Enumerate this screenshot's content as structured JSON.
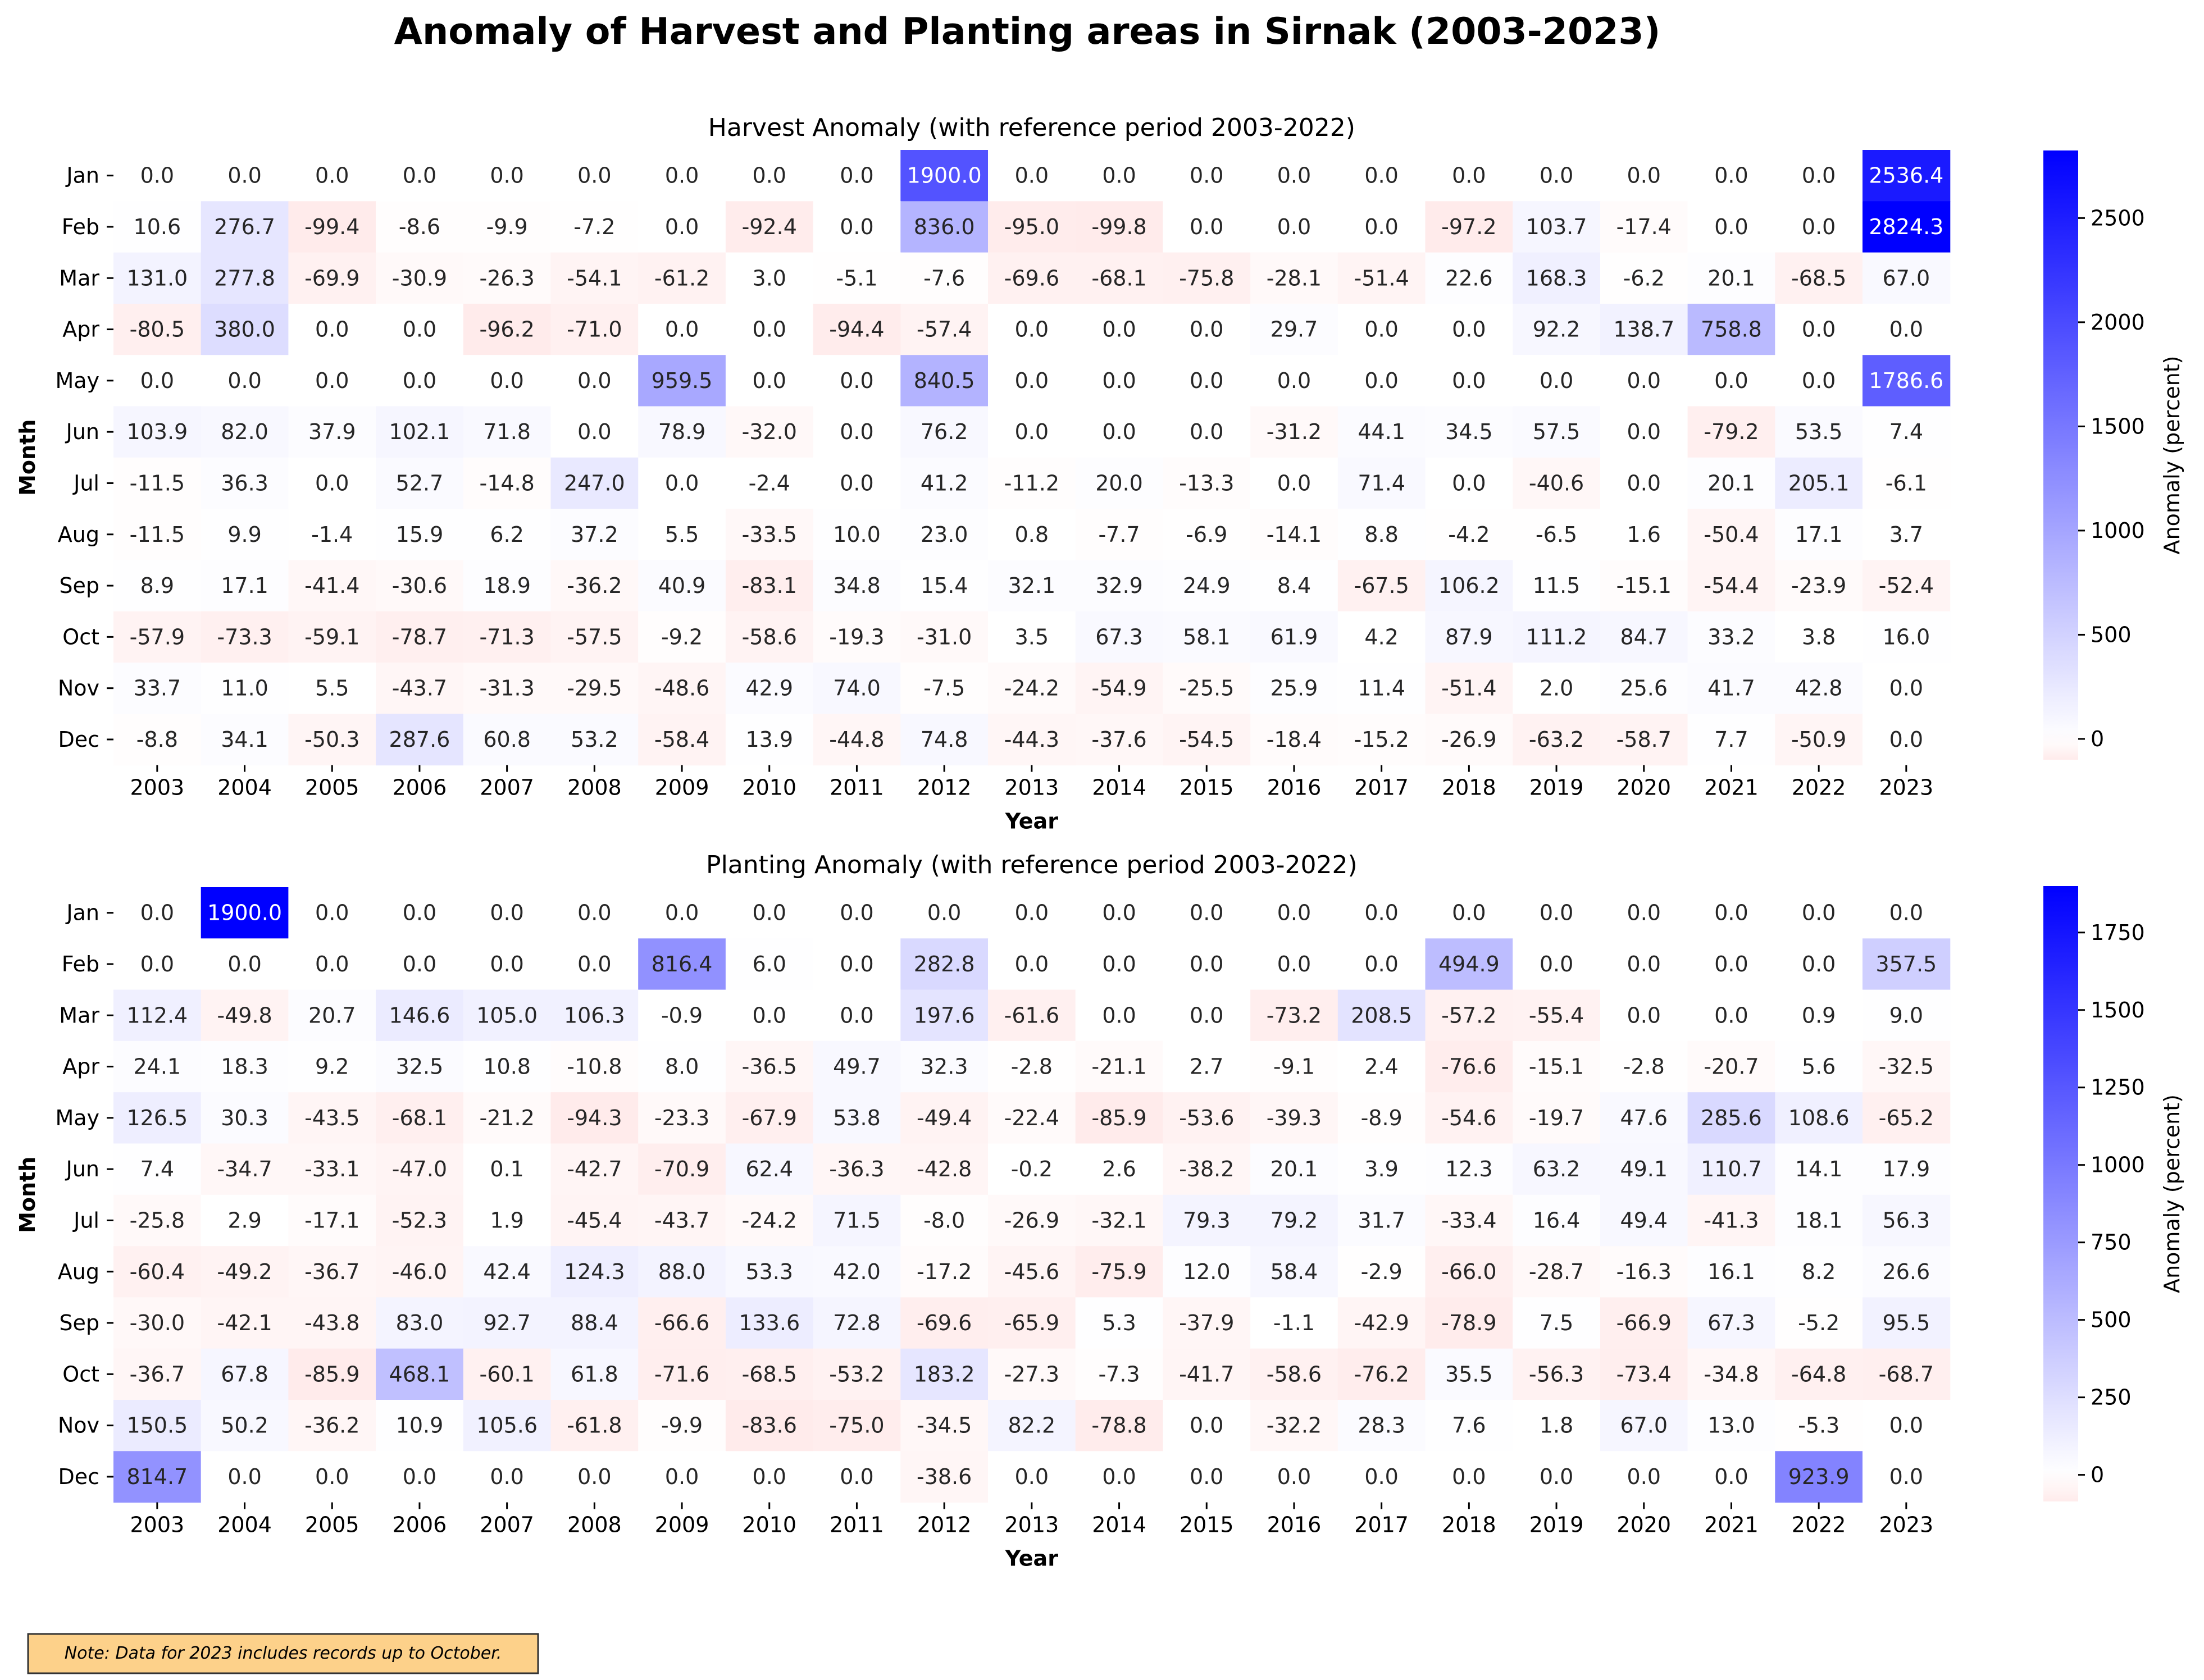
{
  "suptitle": "Anomaly of Harvest and Planting areas in Sirnak (2003-2023)",
  "note": "Note: Data for 2023 includes records up to October.",
  "chart_data": [
    {
      "type": "heatmap",
      "title": "Harvest Anomaly (with reference period 2003-2022)",
      "xlabel": "Year",
      "ylabel": "Month",
      "colorbar_label": "Anomaly (percent)",
      "colorbar_ticks": [
        0,
        500,
        1000,
        1500,
        2000,
        2500
      ],
      "vmin": -99.8,
      "vmax": 2824.3,
      "x": [
        "2003",
        "2004",
        "2005",
        "2006",
        "2007",
        "2008",
        "2009",
        "2010",
        "2011",
        "2012",
        "2013",
        "2014",
        "2015",
        "2016",
        "2017",
        "2018",
        "2019",
        "2020",
        "2021",
        "2022",
        "2023"
      ],
      "y": [
        "Jan",
        "Feb",
        "Mar",
        "Apr",
        "May",
        "Jun",
        "Jul",
        "Aug",
        "Sep",
        "Oct",
        "Nov",
        "Dec"
      ],
      "values": [
        [
          0.0,
          0.0,
          0.0,
          0.0,
          0.0,
          0.0,
          0.0,
          0.0,
          0.0,
          1900.0,
          0.0,
          0.0,
          0.0,
          0.0,
          0.0,
          0.0,
          0.0,
          0.0,
          0.0,
          0.0,
          2536.4
        ],
        [
          10.6,
          276.7,
          -99.4,
          -8.6,
          -9.9,
          -7.2,
          0.0,
          -92.4,
          0.0,
          836.0,
          -95.0,
          -99.8,
          0.0,
          0.0,
          0.0,
          -97.2,
          103.7,
          -17.4,
          0.0,
          0.0,
          2824.3
        ],
        [
          131.0,
          277.8,
          -69.9,
          -30.9,
          -26.3,
          -54.1,
          -61.2,
          3.0,
          -5.1,
          -7.6,
          -69.6,
          -68.1,
          -75.8,
          -28.1,
          -51.4,
          22.6,
          168.3,
          -6.2,
          20.1,
          -68.5,
          67.0
        ],
        [
          -80.5,
          380.0,
          0.0,
          0.0,
          -96.2,
          -71.0,
          0.0,
          0.0,
          -94.4,
          -57.4,
          0.0,
          0.0,
          0.0,
          29.7,
          0.0,
          0.0,
          92.2,
          138.7,
          758.8,
          0.0,
          0.0
        ],
        [
          0.0,
          0.0,
          0.0,
          0.0,
          0.0,
          0.0,
          959.5,
          0.0,
          0.0,
          840.5,
          0.0,
          0.0,
          0.0,
          0.0,
          0.0,
          0.0,
          0.0,
          0.0,
          0.0,
          0.0,
          1786.6
        ],
        [
          103.9,
          82.0,
          37.9,
          102.1,
          71.8,
          0.0,
          78.9,
          -32.0,
          0.0,
          76.2,
          0.0,
          0.0,
          0.0,
          -31.2,
          44.1,
          34.5,
          57.5,
          0.0,
          -79.2,
          53.5,
          7.4
        ],
        [
          -11.5,
          36.3,
          0.0,
          52.7,
          -14.8,
          247.0,
          0.0,
          -2.4,
          0.0,
          41.2,
          -11.2,
          20.0,
          -13.3,
          0.0,
          71.4,
          0.0,
          -40.6,
          0.0,
          20.1,
          205.1,
          -6.1
        ],
        [
          -11.5,
          9.9,
          -1.4,
          15.9,
          6.2,
          37.2,
          5.5,
          -33.5,
          10.0,
          23.0,
          0.8,
          -7.7,
          -6.9,
          -14.1,
          8.8,
          -4.2,
          -6.5,
          1.6,
          -50.4,
          17.1,
          3.7
        ],
        [
          8.9,
          17.1,
          -41.4,
          -30.6,
          18.9,
          -36.2,
          40.9,
          -83.1,
          34.8,
          15.4,
          32.1,
          32.9,
          24.9,
          8.4,
          -67.5,
          106.2,
          11.5,
          -15.1,
          -54.4,
          -23.9,
          -52.4
        ],
        [
          -57.9,
          -73.3,
          -59.1,
          -78.7,
          -71.3,
          -57.5,
          -9.2,
          -58.6,
          -19.3,
          -31.0,
          3.5,
          67.3,
          58.1,
          61.9,
          4.2,
          87.9,
          111.2,
          84.7,
          33.2,
          3.8,
          16.0
        ],
        [
          33.7,
          11.0,
          5.5,
          -43.7,
          -31.3,
          -29.5,
          -48.6,
          42.9,
          74.0,
          -7.5,
          -24.2,
          -54.9,
          -25.5,
          25.9,
          11.4,
          -51.4,
          2.0,
          25.6,
          41.7,
          42.8,
          0.0
        ],
        [
          -8.8,
          34.1,
          -50.3,
          287.6,
          60.8,
          53.2,
          -58.4,
          13.9,
          -44.8,
          74.8,
          -44.3,
          -37.6,
          -54.5,
          -18.4,
          -15.2,
          -26.9,
          -63.2,
          -58.7,
          7.7,
          -50.9,
          0.0
        ]
      ]
    },
    {
      "type": "heatmap",
      "title": "Planting Anomaly (with reference period 2003-2022)",
      "xlabel": "Year",
      "ylabel": "Month",
      "colorbar_label": "Anomaly (percent)",
      "colorbar_ticks": [
        0,
        250,
        500,
        750,
        1000,
        1250,
        1500,
        1750
      ],
      "vmin": -85.9,
      "vmax": 1900.0,
      "x": [
        "2003",
        "2004",
        "2005",
        "2006",
        "2007",
        "2008",
        "2009",
        "2010",
        "2011",
        "2012",
        "2013",
        "2014",
        "2015",
        "2016",
        "2017",
        "2018",
        "2019",
        "2020",
        "2021",
        "2022",
        "2023"
      ],
      "y": [
        "Jan",
        "Feb",
        "Mar",
        "Apr",
        "May",
        "Jun",
        "Jul",
        "Aug",
        "Sep",
        "Oct",
        "Nov",
        "Dec"
      ],
      "values": [
        [
          0.0,
          1900.0,
          0.0,
          0.0,
          0.0,
          0.0,
          0.0,
          0.0,
          0.0,
          0.0,
          0.0,
          0.0,
          0.0,
          0.0,
          0.0,
          0.0,
          0.0,
          0.0,
          0.0,
          0.0,
          0.0
        ],
        [
          0.0,
          0.0,
          0.0,
          0.0,
          0.0,
          0.0,
          816.4,
          6.0,
          0.0,
          282.8,
          0.0,
          0.0,
          0.0,
          0.0,
          0.0,
          494.9,
          0.0,
          0.0,
          0.0,
          0.0,
          357.5
        ],
        [
          112.4,
          -49.8,
          20.7,
          146.6,
          105.0,
          106.3,
          -0.9,
          0.0,
          0.0,
          197.6,
          -61.6,
          0.0,
          0.0,
          -73.2,
          208.5,
          -57.2,
          -55.4,
          0.0,
          0.0,
          0.9,
          9.0
        ],
        [
          24.1,
          18.3,
          9.2,
          32.5,
          10.8,
          -10.8,
          8.0,
          -36.5,
          49.7,
          32.3,
          -2.8,
          -21.1,
          2.7,
          -9.1,
          2.4,
          -76.6,
          -15.1,
          -2.8,
          -20.7,
          5.6,
          -32.5
        ],
        [
          126.5,
          30.3,
          -43.5,
          -68.1,
          -21.2,
          -94.3,
          -23.3,
          -67.9,
          53.8,
          -49.4,
          -22.4,
          -85.9,
          -53.6,
          -39.3,
          -8.9,
          -54.6,
          -19.7,
          47.6,
          285.6,
          108.6,
          -65.2
        ],
        [
          7.4,
          -34.7,
          -33.1,
          -47.0,
          0.1,
          -42.7,
          -70.9,
          62.4,
          -36.3,
          -42.8,
          -0.2,
          2.6,
          -38.2,
          20.1,
          3.9,
          12.3,
          63.2,
          49.1,
          110.7,
          14.1,
          17.9
        ],
        [
          -25.8,
          2.9,
          -17.1,
          -52.3,
          1.9,
          -45.4,
          -43.7,
          -24.2,
          71.5,
          -8.0,
          -26.9,
          -32.1,
          79.3,
          79.2,
          31.7,
          -33.4,
          16.4,
          49.4,
          -41.3,
          18.1,
          56.3
        ],
        [
          -60.4,
          -49.2,
          -36.7,
          -46.0,
          42.4,
          124.3,
          88.0,
          53.3,
          42.0,
          -17.2,
          -45.6,
          -75.9,
          12.0,
          58.4,
          -2.9,
          -66.0,
          -28.7,
          -16.3,
          16.1,
          8.2,
          26.6
        ],
        [
          -30.0,
          -42.1,
          -43.8,
          83.0,
          92.7,
          88.4,
          -66.6,
          133.6,
          72.8,
          -69.6,
          -65.9,
          5.3,
          -37.9,
          -1.1,
          -42.9,
          -78.9,
          7.5,
          -66.9,
          67.3,
          -5.2,
          95.5
        ],
        [
          -36.7,
          67.8,
          -85.9,
          468.1,
          -60.1,
          61.8,
          -71.6,
          -68.5,
          -53.2,
          183.2,
          -27.3,
          -7.3,
          -41.7,
          -58.6,
          -76.2,
          35.5,
          -56.3,
          -73.4,
          -34.8,
          -64.8,
          -68.7
        ],
        [
          150.5,
          50.2,
          -36.2,
          10.9,
          105.6,
          -61.8,
          -9.9,
          -83.6,
          -75.0,
          -34.5,
          82.2,
          -78.8,
          0.0,
          -32.2,
          28.3,
          7.6,
          1.8,
          67.0,
          13.0,
          -5.3,
          0.0
        ],
        [
          814.7,
          0.0,
          0.0,
          0.0,
          0.0,
          0.0,
          0.0,
          0.0,
          0.0,
          -38.6,
          0.0,
          0.0,
          0.0,
          0.0,
          0.0,
          0.0,
          0.0,
          0.0,
          0.0,
          923.9,
          0.0
        ]
      ]
    }
  ]
}
